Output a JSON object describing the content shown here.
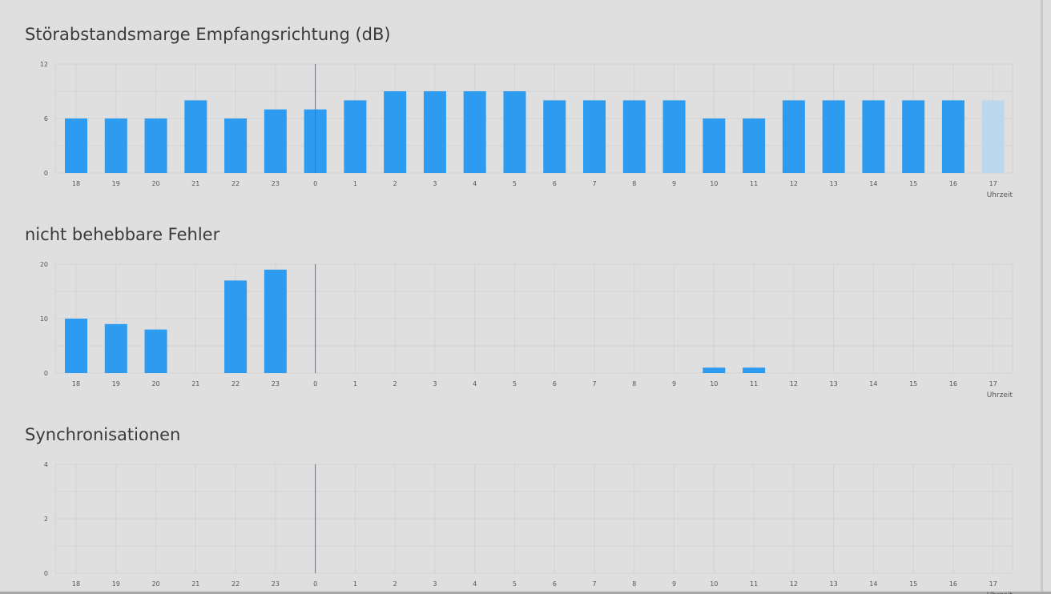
{
  "colors": {
    "bar": "#2d9bf0",
    "bar_current": "#bcd8ef",
    "grid": "#d3d3d3",
    "marker": "#2b7fd6",
    "text": "#555555"
  },
  "hours": [
    "18",
    "19",
    "20",
    "21",
    "22",
    "23",
    "0",
    "1",
    "2",
    "3",
    "4",
    "5",
    "6",
    "7",
    "8",
    "9",
    "10",
    "11",
    "12",
    "13",
    "14",
    "15",
    "16",
    "17"
  ],
  "xlabel": "Uhrzeit",
  "charts": [
    {
      "title": "Störabstandsmarge Empfangsrichtung (dB)",
      "chart_data": {
        "type": "bar",
        "title": "Störabstandsmarge Empfangsrichtung (dB)",
        "xlabel": "Uhrzeit",
        "ylabel": "",
        "ylim": [
          0,
          12
        ],
        "yticks": [
          0,
          6,
          12
        ],
        "categories": [
          "18",
          "19",
          "20",
          "21",
          "22",
          "23",
          "0",
          "1",
          "2",
          "3",
          "4",
          "5",
          "6",
          "7",
          "8",
          "9",
          "10",
          "11",
          "12",
          "13",
          "14",
          "15",
          "16",
          "17"
        ],
        "values": [
          6,
          6,
          6,
          8,
          6,
          7,
          7,
          8,
          9,
          9,
          9,
          9,
          8,
          8,
          8,
          8,
          6,
          6,
          8,
          8,
          8,
          8,
          8,
          8
        ],
        "current_index": 23,
        "marker_category": "0",
        "grid": true
      }
    },
    {
      "title": "nicht behebbare Fehler",
      "chart_data": {
        "type": "bar",
        "title": "nicht behebbare Fehler",
        "xlabel": "Uhrzeit",
        "ylabel": "",
        "ylim": [
          0,
          20
        ],
        "yticks": [
          0,
          10,
          20
        ],
        "categories": [
          "18",
          "19",
          "20",
          "21",
          "22",
          "23",
          "0",
          "1",
          "2",
          "3",
          "4",
          "5",
          "6",
          "7",
          "8",
          "9",
          "10",
          "11",
          "12",
          "13",
          "14",
          "15",
          "16",
          "17"
        ],
        "values": [
          10,
          9,
          8,
          0,
          17,
          19,
          0,
          0,
          0,
          0,
          0,
          0,
          0,
          0,
          0,
          0,
          1,
          1,
          0,
          0,
          0,
          0,
          0,
          0
        ],
        "current_index": 23,
        "marker_category": "0",
        "grid": true
      }
    },
    {
      "title": "Synchronisationen",
      "chart_data": {
        "type": "bar",
        "title": "Synchronisationen",
        "xlabel": "Uhrzeit",
        "ylabel": "",
        "ylim": [
          0,
          4
        ],
        "yticks": [
          0,
          2,
          4
        ],
        "categories": [
          "18",
          "19",
          "20",
          "21",
          "22",
          "23",
          "0",
          "1",
          "2",
          "3",
          "4",
          "5",
          "6",
          "7",
          "8",
          "9",
          "10",
          "11",
          "12",
          "13",
          "14",
          "15",
          "16",
          "17"
        ],
        "values": [
          0,
          0,
          0,
          0,
          0,
          0,
          0,
          0,
          0,
          0,
          0,
          0,
          0,
          0,
          0,
          0,
          0,
          0,
          0,
          0,
          0,
          0,
          0,
          0
        ],
        "current_index": 23,
        "marker_category": "0",
        "grid": true
      }
    }
  ]
}
